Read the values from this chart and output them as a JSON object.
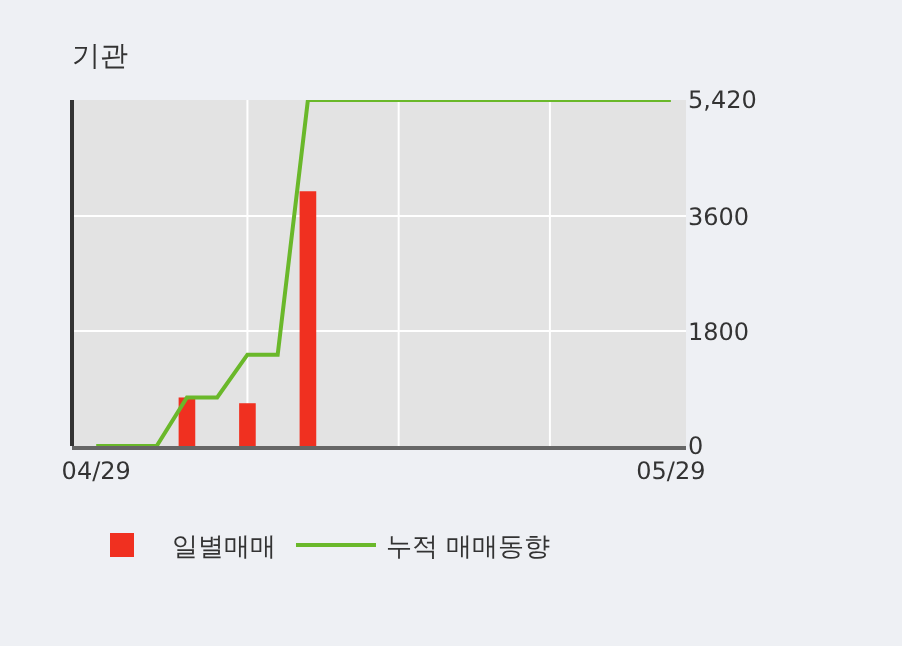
{
  "chart_data": {
    "type": "bar",
    "title": "기관",
    "categories": [
      "04/29",
      null,
      null,
      null,
      null,
      null,
      null,
      null,
      null,
      null,
      null,
      null,
      null,
      null,
      null,
      null,
      null,
      null,
      null,
      "05/29"
    ],
    "series": [
      {
        "name": "일별매매",
        "color": "#f03020",
        "values": [
          0,
          0,
          0,
          760,
          0,
          670,
          0,
          3990,
          0,
          0,
          0,
          0,
          0,
          0,
          0,
          0,
          0,
          0,
          0,
          0
        ]
      },
      {
        "name": "누적 매매동향",
        "type": "line",
        "color": "#6ab82a",
        "values": [
          0,
          0,
          0,
          760,
          760,
          1430,
          1430,
          5420,
          5420,
          5420,
          5420,
          5420,
          5420,
          5420,
          5420,
          5420,
          5420,
          5420,
          5420,
          5420
        ]
      }
    ],
    "ylim": [
      0,
      5420
    ],
    "yticks": [
      0,
      1800,
      3600,
      {
        "value": 5420,
        "label": "5,420"
      }
    ],
    "grid": true,
    "legend": "bottom",
    "marker": "none"
  }
}
